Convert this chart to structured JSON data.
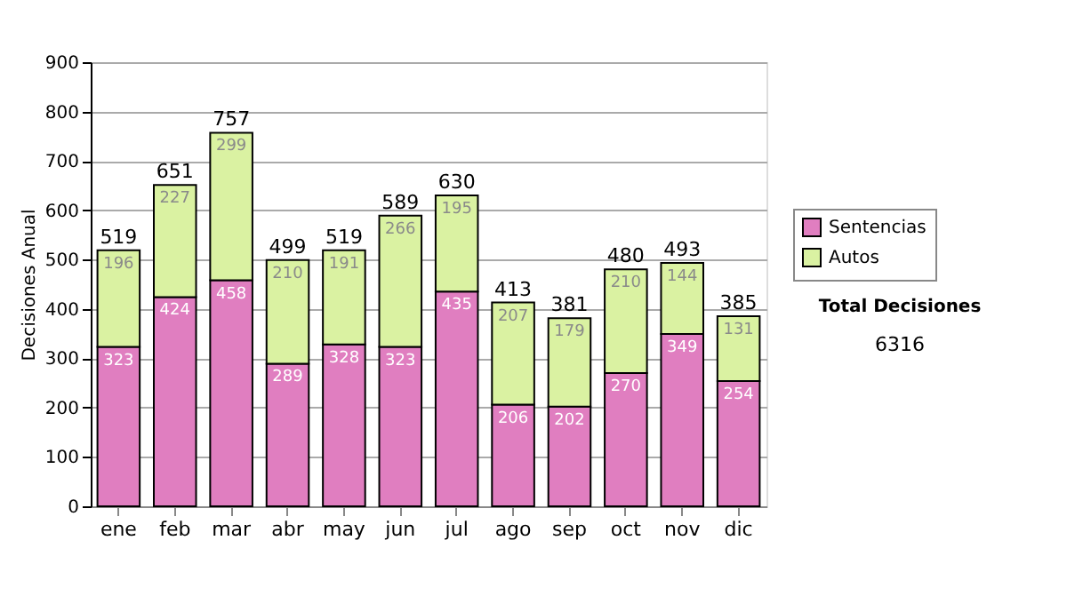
{
  "chart_data": {
    "type": "bar",
    "stacked": true,
    "ylabel": "Decisiones Anual",
    "categories": [
      "ene",
      "feb",
      "mar",
      "abr",
      "may",
      "jun",
      "jul",
      "ago",
      "sep",
      "oct",
      "nov",
      "dic"
    ],
    "series": [
      {
        "name": "Sentencias",
        "color": "#e07ec0",
        "values": [
          323,
          424,
          458,
          289,
          328,
          323,
          435,
          206,
          202,
          270,
          349,
          254
        ]
      },
      {
        "name": "Autos",
        "color": "#daf2a2",
        "values": [
          196,
          227,
          299,
          210,
          191,
          266,
          195,
          207,
          179,
          210,
          144,
          131
        ]
      }
    ],
    "totals": [
      "519",
      "651",
      "757",
      "499",
      "519",
      "589",
      "630",
      "413",
      "381",
      "480",
      "493",
      "385"
    ],
    "data_labels": true,
    "ylim": [
      0,
      900
    ],
    "yticks": [
      0,
      100,
      200,
      300,
      400,
      500,
      600,
      700,
      800,
      900
    ],
    "grid": "y",
    "legend": "right",
    "annotations": [
      "Total Decisiones",
      "6316"
    ]
  }
}
